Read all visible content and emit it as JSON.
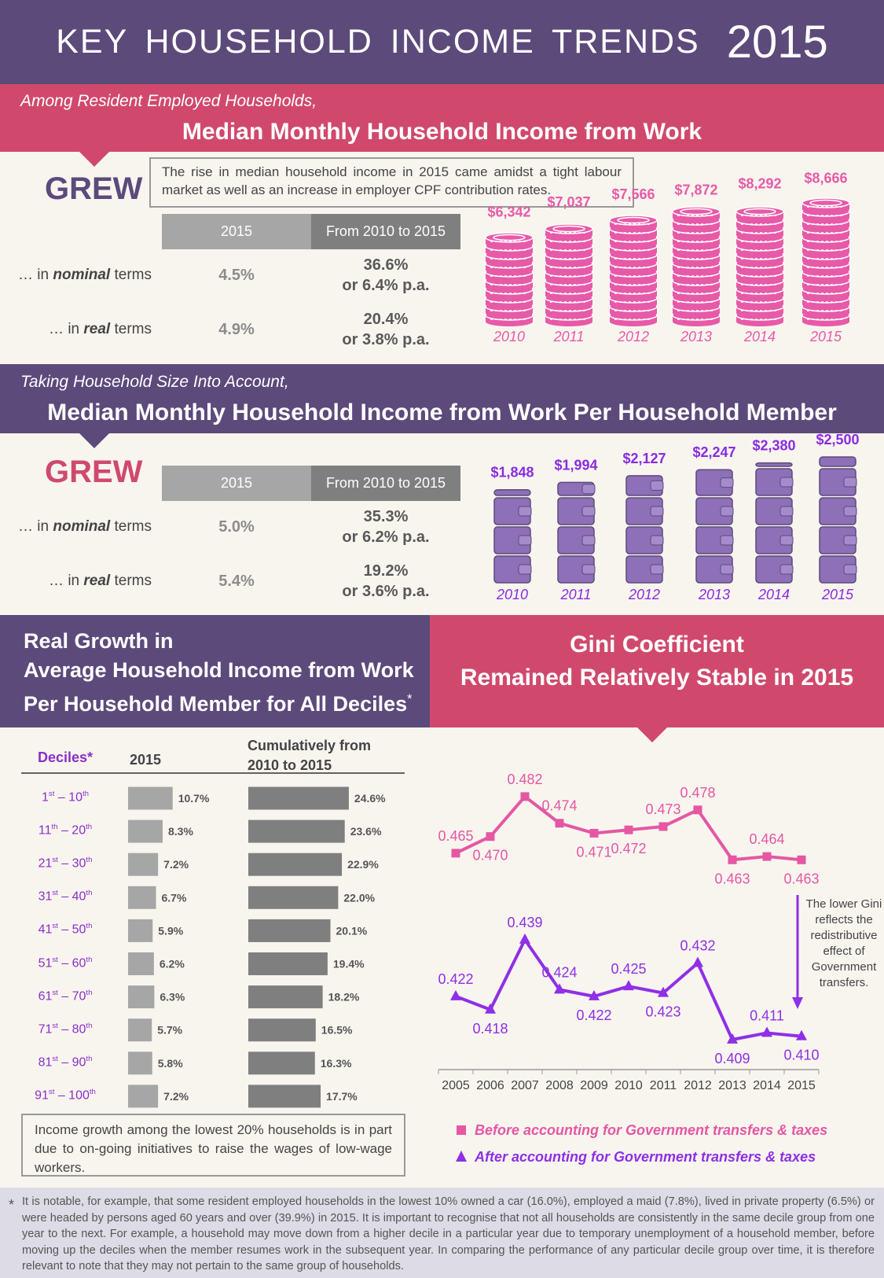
{
  "header": {
    "title": "KEY HOUSEHOLD INCOME TRENDS",
    "year": "2015"
  },
  "income": {
    "intro": "Among Resident Employed Households,",
    "heading": "Median Monthly Household Income from Work",
    "status": "GREW",
    "note": "The rise in median household income in 2015 came amidst a tight labour market as well as an increase in employer CPF contribution rates.",
    "columns": [
      "2015",
      "From 2010 to 2015"
    ],
    "rows": [
      {
        "pre": "… in ",
        "em": "nominal",
        "post": " terms",
        "year": "4.5%",
        "period": [
          "36.6%",
          "or 6.4% p.a."
        ]
      },
      {
        "pre": "… in ",
        "em": "real",
        "post": " terms",
        "year": "4.9%",
        "period": [
          "20.4%",
          "or 3.8% p.a."
        ]
      }
    ]
  },
  "per_member": {
    "intro": "Taking Household Size Into Account,",
    "heading": "Median Monthly Household Income from Work Per Household Member",
    "status": "GREW",
    "columns": [
      "2015",
      "From 2010 to 2015"
    ],
    "rows": [
      {
        "pre": "… in ",
        "em": "nominal",
        "post": " terms",
        "year": "5.0%",
        "period": [
          "35.3%",
          "or 6.2% p.a."
        ]
      },
      {
        "pre": "… in ",
        "em": "real",
        "post": " terms",
        "year": "5.4%",
        "period": [
          "19.2%",
          "or 3.6% p.a."
        ]
      }
    ]
  },
  "deciles_heading": {
    "lines": [
      "Real Growth in",
      "Average Household Income from Work",
      "Per Household Member for All Deciles"
    ],
    "mark": "*"
  },
  "gini_heading": {
    "lines": [
      "Gini Coefficient",
      "Remained Relatively Stable in 2015"
    ]
  },
  "deciles_note": "Income growth among the lowest 20% households is in part due to on-going initiatives to raise the wages of low-wage workers.",
  "gini_note": "The lower Gini reflects the redistributive effect of Government transfers.",
  "footnote": {
    "mark": "*",
    "text": "It is notable, for example, that some resident employed households in the lowest 10% owned a car (16.0%), employed a maid (7.8%), lived in private property (6.5%) or were headed by persons aged 60 years and over (39.9%) in 2015. It is important to recognise that not all households are consistently in the same decile group from one year to the next. For example, a household may move down from a higher decile in a particular year due to temporary unemployment of a household member, before moving up the deciles when the member resumes work in the subsequent year. In comparing the performance of any particular decile group over time, it is therefore relevant to note that they may not pertain to the same group of households."
  },
  "chart_data": [
    {
      "type": "coins",
      "categories": [
        "2010",
        "2011",
        "2012",
        "2013",
        "2014",
        "2015"
      ],
      "values": [
        6342,
        7037,
        7566,
        7872,
        8292,
        8666
      ],
      "value_labels": [
        "$6,342",
        "$7,037",
        "$7,566",
        "$7,872",
        "$8,292",
        "$8,666"
      ],
      "color": "#e75aa8"
    },
    {
      "type": "wallets",
      "categories": [
        "2010",
        "2011",
        "2012",
        "2013",
        "2014",
        "2015"
      ],
      "values": [
        1848,
        1994,
        2127,
        2247,
        2380,
        2500
      ],
      "value_labels": [
        "$1,848",
        "$1,994",
        "$2,127",
        "$2,247",
        "$2,380",
        "$2,500"
      ],
      "color": "#8d70b8"
    },
    {
      "type": "hbar",
      "category_title": "Deciles*",
      "categories": [
        "1st – 10th",
        "11th – 20th",
        "21st – 30th",
        "31st – 40th",
        "41st – 50th",
        "51st – 60th",
        "61st – 70th",
        "71st – 80th",
        "81st – 90th",
        "91st – 100th"
      ],
      "series": [
        {
          "name": "2015",
          "color": "#a6a6a6",
          "values": [
            10.7,
            8.3,
            7.2,
            6.7,
            5.9,
            6.2,
            6.3,
            5.7,
            5.8,
            7.2
          ],
          "value_labels": [
            "10.7%",
            "8.3%",
            "7.2%",
            "6.7%",
            "5.9%",
            "6.2%",
            "6.3%",
            "5.7%",
            "5.8%",
            "7.2%"
          ]
        },
        {
          "name": "Cumulatively from 2010 to 2015",
          "color": "#7f7f7f",
          "values": [
            24.6,
            23.6,
            22.9,
            22.0,
            20.1,
            19.4,
            18.2,
            16.5,
            16.3,
            17.7
          ],
          "value_labels": [
            "24.6%",
            "23.6%",
            "22.9%",
            "22.0%",
            "20.1%",
            "19.4%",
            "18.2%",
            "16.5%",
            "16.3%",
            "17.7%"
          ]
        }
      ]
    },
    {
      "type": "line",
      "categories": [
        "2005",
        "2006",
        "2007",
        "2008",
        "2009",
        "2010",
        "2011",
        "2012",
        "2013",
        "2014",
        "2015"
      ],
      "ylim": [
        0.4,
        0.49
      ],
      "series": [
        {
          "name": "Before accounting for Government transfers & taxes",
          "color": "#e557a3",
          "marker": "square",
          "values": [
            0.465,
            0.47,
            0.482,
            0.474,
            0.471,
            0.472,
            0.473,
            0.478,
            0.463,
            0.464,
            0.463
          ],
          "value_labels": [
            "0.465",
            "0.470",
            "0.482",
            "0.474",
            "0.471",
            "0.472",
            "0.473",
            "0.478",
            "0.463",
            "0.464",
            "0.463"
          ]
        },
        {
          "name": "After accounting for Government transfers & taxes",
          "color": "#8f2fe6",
          "marker": "triangle",
          "values": [
            0.422,
            0.418,
            0.439,
            0.424,
            0.422,
            0.425,
            0.423,
            0.432,
            0.409,
            0.411,
            0.41
          ],
          "value_labels": [
            "0.422",
            "0.418",
            "0.439",
            "0.424",
            "0.422",
            "0.425",
            "0.423",
            "0.432",
            "0.409",
            "0.411",
            "0.410"
          ]
        }
      ]
    }
  ]
}
